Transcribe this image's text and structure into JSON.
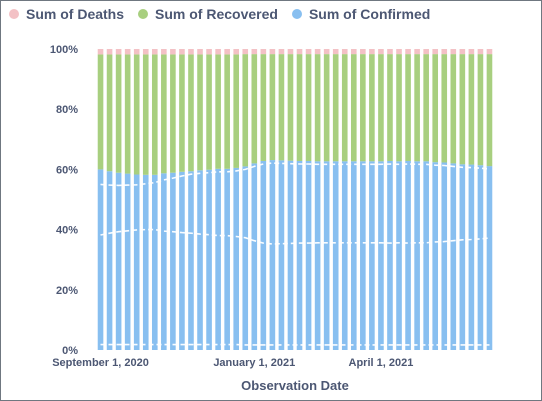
{
  "chart_data": {
    "type": "bar",
    "stacked": true,
    "normalized": true,
    "xlabel": "Observation Date",
    "ylabel": "",
    "ylim": [
      0,
      100
    ],
    "y_ticks": [
      "0%",
      "20%",
      "40%",
      "60%",
      "80%",
      "100%"
    ],
    "x_ticks": [
      {
        "label": "September 1, 2020",
        "index": 0
      },
      {
        "label": "January 1, 2021",
        "index": 17
      },
      {
        "label": "April 1, 2021",
        "index": 31
      }
    ],
    "legend_position": "top-left",
    "grid": false,
    "colors": {
      "deaths": "#f3c1c5",
      "recovered": "#a8cf7f",
      "confirmed": "#88bff0"
    },
    "series": [
      {
        "name": "Sum of Deaths",
        "color": "#f3c1c5",
        "values": [
          1.8,
          1.8,
          1.8,
          1.8,
          1.8,
          1.8,
          1.8,
          1.8,
          1.8,
          1.8,
          1.8,
          1.8,
          1.8,
          1.8,
          1.8,
          1.8,
          1.7,
          1.7,
          1.7,
          1.7,
          1.7,
          1.7,
          1.7,
          1.7,
          1.7,
          1.7,
          1.7,
          1.7,
          1.7,
          1.7,
          1.7,
          1.7,
          1.7,
          1.7,
          1.7,
          1.7,
          1.7,
          1.7,
          1.7,
          1.7,
          1.7,
          1.7,
          1.7,
          1.7
        ]
      },
      {
        "name": "Sum of Recovered",
        "color": "#a8cf7f",
        "values": [
          38.2,
          38.8,
          39.3,
          39.6,
          39.9,
          40.0,
          40.0,
          39.5,
          39.3,
          39.0,
          38.8,
          38.5,
          38.3,
          38.0,
          38.0,
          37.7,
          37.3,
          36.3,
          35.5,
          35.2,
          35.3,
          35.4,
          35.5,
          35.5,
          35.6,
          35.6,
          35.6,
          35.6,
          35.6,
          35.6,
          35.6,
          35.6,
          35.5,
          35.6,
          35.5,
          35.6,
          35.6,
          35.9,
          36.0,
          36.3,
          36.6,
          36.7,
          36.9,
          37.2
        ]
      },
      {
        "name": "Sum of Confirmed",
        "color": "#88bff0",
        "values": [
          60.0,
          59.4,
          58.9,
          58.6,
          58.3,
          58.2,
          58.2,
          58.7,
          58.9,
          59.2,
          59.4,
          59.7,
          59.9,
          60.2,
          60.2,
          60.5,
          61.0,
          62.0,
          62.8,
          63.1,
          63.0,
          62.9,
          62.8,
          62.8,
          62.7,
          62.7,
          62.7,
          62.7,
          62.7,
          62.7,
          62.7,
          62.7,
          62.8,
          62.7,
          62.8,
          62.7,
          62.7,
          62.4,
          62.3,
          62.0,
          61.7,
          61.6,
          61.4,
          61.1
        ]
      }
    ]
  }
}
